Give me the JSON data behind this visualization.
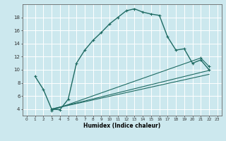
{
  "title": "",
  "xlabel": "Humidex (Indice chaleur)",
  "background_color": "#cce8ee",
  "grid_color": "#ffffff",
  "line_color": "#1f6b63",
  "xlim": [
    -0.5,
    23.5
  ],
  "ylim": [
    3,
    20
  ],
  "xticks": [
    0,
    1,
    2,
    3,
    4,
    5,
    6,
    7,
    8,
    9,
    10,
    11,
    12,
    13,
    14,
    15,
    16,
    17,
    18,
    19,
    20,
    21,
    22,
    23
  ],
  "yticks": [
    4,
    6,
    8,
    10,
    12,
    14,
    16,
    18
  ],
  "curve1_x": [
    1,
    2,
    3,
    4,
    5,
    6,
    7,
    8,
    9,
    10,
    11,
    12,
    13,
    14,
    15,
    16,
    17,
    18,
    19,
    20,
    21,
    22
  ],
  "curve1_y": [
    9.0,
    7.0,
    4.0,
    3.9,
    5.5,
    11.0,
    13.0,
    14.5,
    15.7,
    17.0,
    18.0,
    19.0,
    19.3,
    18.8,
    18.5,
    18.3,
    15.0,
    13.0,
    13.2,
    11.0,
    11.5,
    10.0
  ],
  "curve2_x": [
    3,
    22
  ],
  "curve2_y": [
    4.0,
    9.9
  ],
  "curve3_x": [
    3,
    22
  ],
  "curve3_y": [
    4.0,
    9.3
  ],
  "curve4_x": [
    3,
    21,
    22
  ],
  "curve4_y": [
    3.8,
    11.8,
    10.5
  ]
}
